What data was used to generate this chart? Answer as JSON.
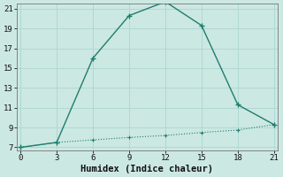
{
  "line1_x": [
    0,
    3,
    6,
    9,
    12,
    15,
    18,
    21
  ],
  "line1_y": [
    7.0,
    7.5,
    16.0,
    20.3,
    21.7,
    19.3,
    11.3,
    9.3
  ],
  "line2_x": [
    0,
    3,
    6,
    9,
    12,
    15,
    18,
    21
  ],
  "line2_y": [
    7.0,
    7.5,
    7.75,
    8.0,
    8.2,
    8.5,
    8.75,
    9.3
  ],
  "color": "#1e7d6e",
  "xlabel": "Humidex (Indice chaleur)",
  "xlim": [
    0,
    21
  ],
  "ylim": [
    7,
    21
  ],
  "xticks": [
    0,
    3,
    6,
    9,
    12,
    15,
    18,
    21
  ],
  "yticks": [
    7,
    9,
    11,
    13,
    15,
    17,
    19,
    21
  ],
  "bg_color": "#cce8e3",
  "grid_color": "#b0d8d3"
}
